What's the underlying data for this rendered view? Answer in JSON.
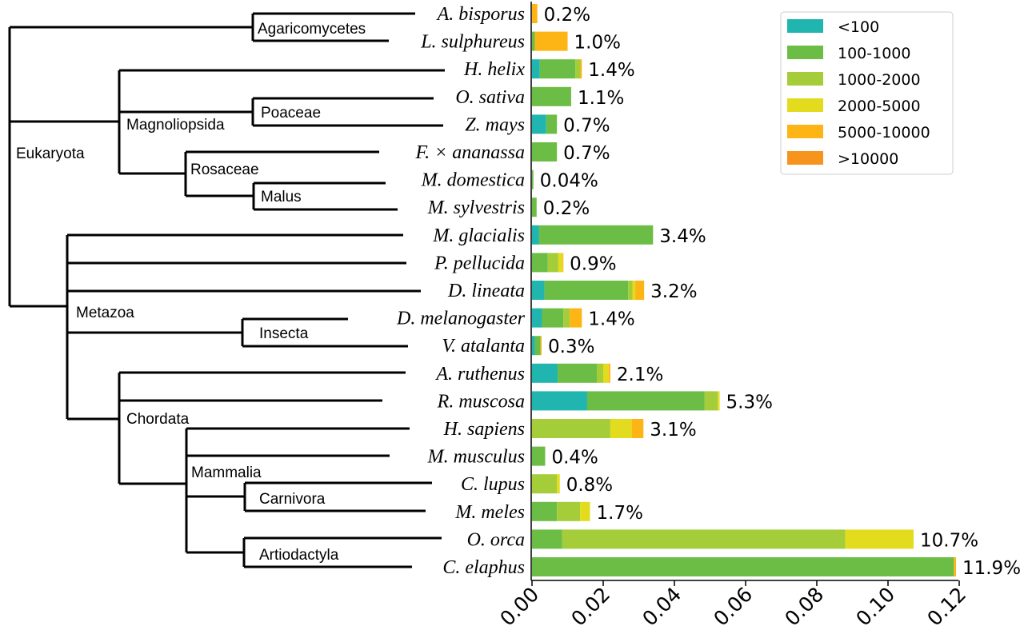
{
  "chart_data": {
    "type": "bar",
    "orientation": "horizontal",
    "stacked": true,
    "xlim": [
      0,
      0.12
    ],
    "xticks": [
      "0.00",
      "0.02",
      "0.04",
      "0.06",
      "0.08",
      "0.10",
      "0.12"
    ],
    "xtick_values": [
      0,
      0.02,
      0.04,
      0.06,
      0.08,
      0.1,
      0.12
    ],
    "legend_position": "top-right",
    "series_info": [
      {
        "name": "<100",
        "color": "#21b5b0"
      },
      {
        "name": "100-1000",
        "color": "#6cbd45"
      },
      {
        "name": "1000-2000",
        "color": "#a5cd39"
      },
      {
        "name": "2000-5000",
        "color": "#e3dc1e"
      },
      {
        "name": "5000-10000",
        "color": "#fdb515"
      },
      {
        "name": ">10000",
        "color": "#f7941d"
      }
    ],
    "categories": [
      "A. bisporus",
      "L. sulphureus",
      "H. helix",
      "O. sativa",
      "Z. mays",
      "F. × ananassa",
      "M. domestica",
      "M. sylvestris",
      "M. glacialis",
      "P. pellucida",
      "D. lineata",
      "D. melanogaster",
      "V. atalanta",
      "A. ruthenus",
      "R. muscosa",
      "H. sapiens",
      "M. musculus",
      "C. lupus",
      "M. meles",
      "O. orca",
      "C. elaphus"
    ],
    "percent_labels": [
      "0.2%",
      "1.0%",
      "1.4%",
      "1.1%",
      "0.7%",
      "0.7%",
      "0.04%",
      "0.2%",
      "3.4%",
      "0.9%",
      "3.2%",
      "1.4%",
      "0.3%",
      "2.1%",
      "5.3%",
      "3.1%",
      "0.4%",
      "0.8%",
      "1.7%",
      "10.7%",
      "11.9%"
    ],
    "series": [
      {
        "name": "<100",
        "values": [
          0,
          0,
          0.0022,
          0,
          0.004,
          0,
          0,
          0,
          0.002,
          0,
          0.0035,
          0.0028,
          0.0008,
          0.0072,
          0.0155,
          0,
          0,
          0,
          0,
          0,
          0
        ]
      },
      {
        "name": "100-1000",
        "values": [
          0,
          0.0008,
          0.01,
          0.011,
          0.003,
          0.007,
          0.0004,
          0.0013,
          0.032,
          0.0044,
          0.0235,
          0.006,
          0.0016,
          0.011,
          0.033,
          0,
          0.0037,
          0,
          0.007,
          0.0085,
          0.1185
        ]
      },
      {
        "name": "1000-2000",
        "values": [
          0,
          0,
          0.0014,
          0,
          0,
          0,
          0,
          0,
          0,
          0.003,
          0.0012,
          0.0018,
          0,
          0.0018,
          0.0037,
          0.022,
          0,
          0.007,
          0.0065,
          0.0795,
          0
        ]
      },
      {
        "name": "2000-5000",
        "values": [
          0,
          0,
          0,
          0,
          0,
          0,
          0,
          0,
          0,
          0.0012,
          0.0008,
          0,
          0,
          0.0015,
          0.0005,
          0.006,
          0,
          0.0008,
          0.0028,
          0.0192,
          0
        ]
      },
      {
        "name": "5000-10000",
        "values": [
          0.0015,
          0.0092,
          0.0004,
          0,
          0,
          0,
          0,
          0,
          0,
          0.0002,
          0.0025,
          0.0034,
          0.0003,
          0.0005,
          0,
          0.0033,
          0,
          0,
          0,
          0,
          0.0006
        ]
      },
      {
        "name": ">10000",
        "values": [
          0,
          0,
          0,
          0,
          0,
          0,
          0,
          0,
          0,
          0,
          0,
          0,
          0,
          0,
          0,
          0,
          0,
          0,
          0,
          0,
          0
        ]
      }
    ],
    "clades": [
      "Agaricomycetes",
      "Eukaryota",
      "Magnoliopsida",
      "Poaceae",
      "Rosaceae",
      "Malus",
      "Metazoa",
      "Insecta",
      "Chordata",
      "Mammalia",
      "Carnivora",
      "Artiodactyla"
    ]
  }
}
